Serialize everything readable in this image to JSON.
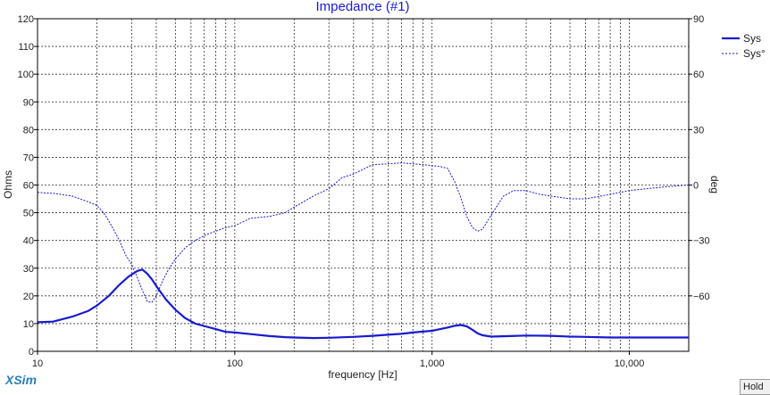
{
  "app": {
    "brand": "XSim",
    "hold_label": "Hold"
  },
  "colors": {
    "curve": "#1a1ad0",
    "grid": "#222222",
    "axis": "#000000"
  },
  "chart_data": {
    "type": "line",
    "title": "Impedance (#1)",
    "xlabel": "frequency [Hz]",
    "ylabel": "Ohms",
    "y2label": "deg",
    "xscale": "log",
    "xlim": [
      10,
      20000
    ],
    "ylim": [
      0,
      120
    ],
    "y2lim": [
      -90,
      90
    ],
    "xticks": [
      {
        "value": 10,
        "label": "10"
      },
      {
        "value": 100,
        "label": "100"
      },
      {
        "value": 1000,
        "label": "1,000"
      },
      {
        "value": 10000,
        "label": "10,000"
      }
    ],
    "yticks": [
      0,
      10,
      20,
      30,
      40,
      50,
      60,
      70,
      80,
      90,
      100,
      110,
      120
    ],
    "y2ticks": [
      -60,
      -30,
      0,
      30,
      60,
      90
    ],
    "grid": "vertical log minor lines dashed, horizontal dashed",
    "legend_position": "top-right",
    "series": [
      {
        "name": "Sys",
        "axis": "left",
        "style": "solid",
        "x": [
          10,
          12,
          15,
          18,
          20,
          23,
          26,
          29,
          32,
          34,
          36,
          38,
          41,
          45,
          50,
          56,
          63,
          71,
          80,
          90,
          100,
          120,
          150,
          180,
          200,
          250,
          300,
          400,
          500,
          600,
          700,
          800,
          900,
          1000,
          1100,
          1200,
          1300,
          1400,
          1500,
          1600,
          1700,
          1800,
          2000,
          2500,
          3000,
          4000,
          5000,
          6000,
          8000,
          10000,
          15000,
          20000
        ],
        "values": [
          10.5,
          10.7,
          12.5,
          14.5,
          16.5,
          20,
          24,
          27,
          29,
          29.5,
          28,
          26,
          22.5,
          18.5,
          15,
          12,
          10,
          9,
          8,
          7,
          6.8,
          6.2,
          5.5,
          5.1,
          5.0,
          4.8,
          4.9,
          5.2,
          5.6,
          6.0,
          6.3,
          6.8,
          7.1,
          7.4,
          8.0,
          8.6,
          9.2,
          9.5,
          9.0,
          7.8,
          6.5,
          5.8,
          5.3,
          5.5,
          5.7,
          5.6,
          5.3,
          5.2,
          5.0,
          5.0,
          5.0,
          5.0
        ]
      },
      {
        "name": "Sys°",
        "axis": "right",
        "style": "dashed",
        "x": [
          10,
          12,
          15,
          18,
          20,
          22,
          24,
          26,
          28,
          30,
          32,
          34,
          36,
          38,
          40,
          43,
          46,
          50,
          56,
          63,
          71,
          80,
          90,
          100,
          120,
          150,
          180,
          200,
          250,
          300,
          350,
          400,
          500,
          600,
          700,
          800,
          900,
          1000,
          1100,
          1200,
          1300,
          1400,
          1500,
          1600,
          1700,
          1800,
          2000,
          2300,
          2600,
          3000,
          3500,
          4000,
          5000,
          6000,
          8000,
          10000,
          15000,
          20000
        ],
        "values": [
          -4,
          -4.5,
          -6,
          -9,
          -11,
          -16,
          -23,
          -30,
          -38,
          -43,
          -50,
          -57,
          -63,
          -63.5,
          -60,
          -52,
          -46,
          -40,
          -34,
          -30,
          -27,
          -25,
          -23,
          -22,
          -18,
          -17,
          -15,
          -12,
          -6,
          -2,
          4,
          6,
          11,
          11.5,
          12,
          11.5,
          11,
          10.5,
          10,
          9,
          2,
          -7,
          -17,
          -23,
          -25,
          -24,
          -16,
          -6,
          -3,
          -3,
          -5,
          -6,
          -7.5,
          -7.5,
          -5,
          -3,
          -1,
          0
        ]
      }
    ]
  }
}
